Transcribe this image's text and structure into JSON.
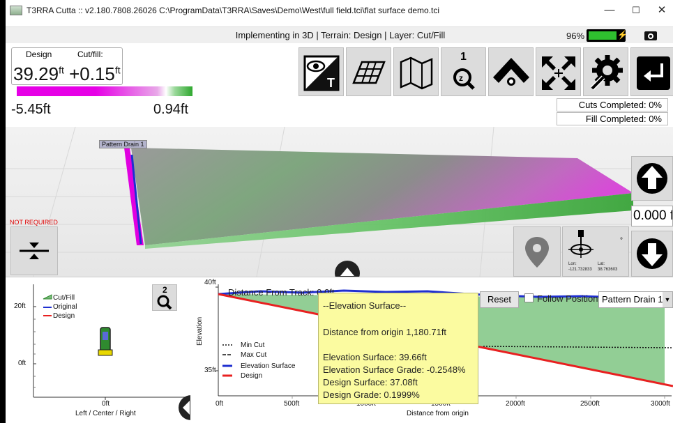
{
  "window": {
    "title": "T3RRA Cutta :: v2.180.7808.26026 C:\\ProgramData\\T3RRA\\Saves\\Demo\\West\\full field.tci\\flat surface demo.tci",
    "minimize": "—",
    "maximize": "☐",
    "close": "✕"
  },
  "status": {
    "text": "Implementing in 3D | Terrain: Design | Layer: Cut/Fill",
    "battery_pct": "96%",
    "battery_level": 0.96
  },
  "readout": {
    "design_label": "Design",
    "cutfill_label": "Cut/fill:",
    "design_value": "39.29",
    "design_unit": "ft",
    "cutfill_value": "+0.15",
    "cutfill_unit": "ft",
    "scale_min": "-5.45ft",
    "scale_max": "0.94ft"
  },
  "toolbar": {
    "items": [
      "view-terrain",
      "layers",
      "map",
      "zoom-level-1",
      "pattern",
      "fit-extents",
      "settings",
      "exit"
    ],
    "zoom_level": "1"
  },
  "progress": {
    "cuts": "Cuts Completed: 0%",
    "fill": "Fill Completed: 0%"
  },
  "view3d": {
    "pattern_label": "Pattern Drain 1",
    "not_required": "NOT REQUIRED",
    "offset_value": "0.000 f",
    "gps_lon_label": "Lon:",
    "gps_lat_label": "Lat:",
    "gps_lon": "-121.732833",
    "gps_lat": "38.763603",
    "gps_deg": "°"
  },
  "cross_section": {
    "legend": [
      "Cut/Fill",
      "Original",
      "Design"
    ],
    "y_ticks": [
      "20ft",
      "0ft"
    ],
    "x_tick": "0ft",
    "x_label": "Left / Center / Right",
    "zoom_level": "2"
  },
  "profile": {
    "title": "Distance From Track: 0.0ft",
    "reset": "Reset",
    "follow": "Follow Position",
    "drain": "Pattern Drain 1",
    "y_label": "Elevation",
    "y_ticks": [
      "40ft",
      "35ft"
    ],
    "x_ticks": [
      "0ft",
      "500ft",
      "1000ft",
      "1500ft",
      "2000ft",
      "2500ft",
      "3000ft"
    ],
    "x_label": "Distance from origin",
    "legend": [
      "Min Cut",
      "Max Cut",
      "Elevation Surface",
      "Design"
    ]
  },
  "tooltip": {
    "header": "--Elevation Surface--",
    "distance": "Distance from origin 1,180.71ft",
    "surface": "Elevation Surface: 39.66ft",
    "surface_grade": "Elevation Surface Grade: -0.2548%",
    "design_surface": "Design Surface: 37.08ft",
    "design_grade": "Design Grade: 0.1999%"
  },
  "colors": {
    "cut": "#e600e6",
    "fill": "#2fa82f",
    "elevation": "#1f2fd0",
    "design": "#e82020",
    "fill_area": "#86c98a"
  }
}
